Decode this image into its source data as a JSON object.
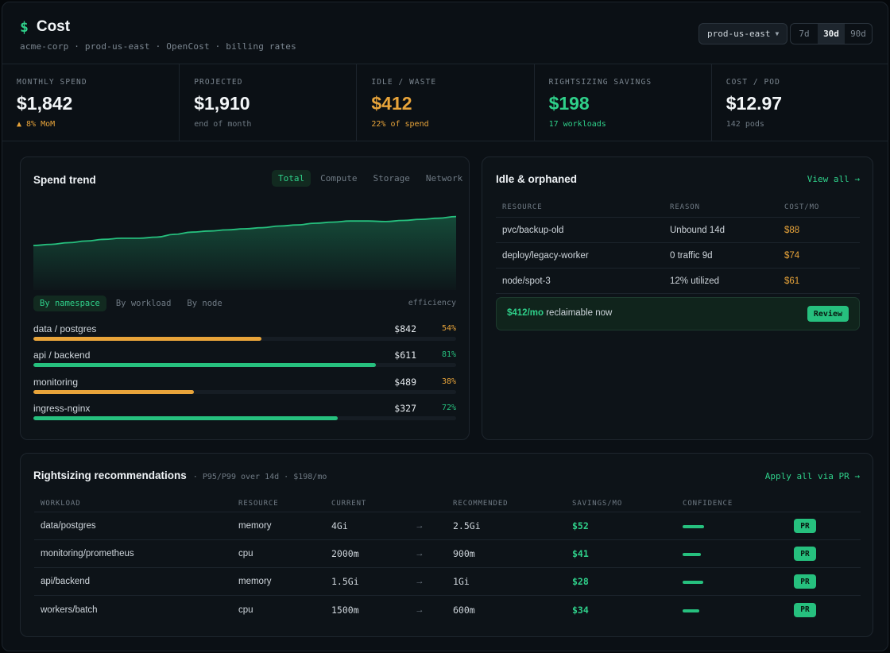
{
  "header": {
    "title": "Cost",
    "subtitle": "acme-corp · prod-us-east · OpenCost · billing rates",
    "context_select": "prod-us-east",
    "ranges": [
      "7d",
      "30d",
      "90d"
    ],
    "active_range": "30d"
  },
  "kpis": [
    {
      "label": "MONTHLY SPEND",
      "value": "$1,842",
      "sub": "▲ 8% MoM",
      "tone": "default",
      "sub_tone": "amber"
    },
    {
      "label": "PROJECTED",
      "value": "$1,910",
      "sub": "end of month",
      "tone": "default",
      "sub_tone": "muted"
    },
    {
      "label": "IDLE / WASTE",
      "value": "$412",
      "sub": "22% of spend",
      "tone": "amber",
      "sub_tone": "amber"
    },
    {
      "label": "RIGHTSIZING SAVINGS",
      "value": "$198",
      "sub": "17 workloads",
      "tone": "green",
      "sub_tone": "green"
    },
    {
      "label": "COST / POD",
      "value": "$12.97",
      "sub": "142 pods",
      "tone": "default",
      "sub_tone": "muted"
    }
  ],
  "trend": {
    "title": "Spend trend",
    "tabs": [
      "Total",
      "Compute",
      "Storage",
      "Network"
    ],
    "active_tab": "Total",
    "chart_data": {
      "type": "area",
      "values": [
        40,
        41,
        42.5,
        44,
        45.5,
        46.5,
        46.5,
        47.5,
        50,
        52,
        53,
        54,
        55,
        56,
        57.5,
        58.5,
        60,
        61,
        62,
        62,
        61.5,
        62.5,
        63.5,
        64.5,
        66
      ],
      "ylim": [
        0,
        80
      ]
    },
    "sub_tabs": [
      "By namespace",
      "By workload",
      "By node"
    ],
    "active_sub_tab": "By namespace",
    "efficiency_label": "efficiency",
    "namespaces": [
      {
        "name": "data / postgres",
        "cost": "$842",
        "efficiency": "54%",
        "share": 0.54,
        "color": "#e8a43a"
      },
      {
        "name": "api / backend",
        "cost": "$611",
        "efficiency": "81%",
        "share": 0.81,
        "color": "#26c07e"
      },
      {
        "name": "monitoring",
        "cost": "$489",
        "efficiency": "38%",
        "share": 0.38,
        "color": "#e8a43a"
      },
      {
        "name": "ingress-nginx",
        "cost": "$327",
        "efficiency": "72%",
        "share": 0.72,
        "color": "#26c07e"
      }
    ]
  },
  "idle": {
    "title": "Idle & orphaned",
    "view_all": "View all →",
    "columns": [
      "RESOURCE",
      "REASON",
      "COST/MO"
    ],
    "rows": [
      {
        "resource": "pvc/backup-old",
        "reason": "Unbound 14d",
        "cost": "$88"
      },
      {
        "resource": "deploy/legacy-worker",
        "reason": "0 traffic 9d",
        "cost": "$74"
      },
      {
        "resource": "node/spot-3",
        "reason": "12% utilized",
        "cost": "$61"
      }
    ],
    "reclaim_amount": "$412/mo",
    "reclaim_text": " reclaimable now",
    "review_label": "Review"
  },
  "rightsizing": {
    "title": "Rightsizing recommendations",
    "meta": "· P95/P99 over 14d · $198/mo",
    "apply_all": "Apply all via PR →",
    "columns": [
      "WORKLOAD",
      "RESOURCE",
      "CURRENT",
      "",
      "RECOMMENDED",
      "SAVINGS/MO",
      "CONFIDENCE",
      ""
    ],
    "rows": [
      {
        "workload": "data/postgres",
        "resource": "memory",
        "current": "4Gi",
        "recommended": "2.5Gi",
        "savings": "$52",
        "confidence": 0.9,
        "action": "PR"
      },
      {
        "workload": "monitoring/prometheus",
        "resource": "cpu",
        "current": "2000m",
        "recommended": "900m",
        "savings": "$41",
        "confidence": 0.78,
        "action": "PR"
      },
      {
        "workload": "api/backend",
        "resource": "memory",
        "current": "1.5Gi",
        "recommended": "1Gi",
        "savings": "$28",
        "confidence": 0.85,
        "action": "PR"
      },
      {
        "workload": "workers/batch",
        "resource": "cpu",
        "current": "1500m",
        "recommended": "600m",
        "savings": "$34",
        "confidence": 0.7,
        "action": "PR"
      }
    ]
  }
}
